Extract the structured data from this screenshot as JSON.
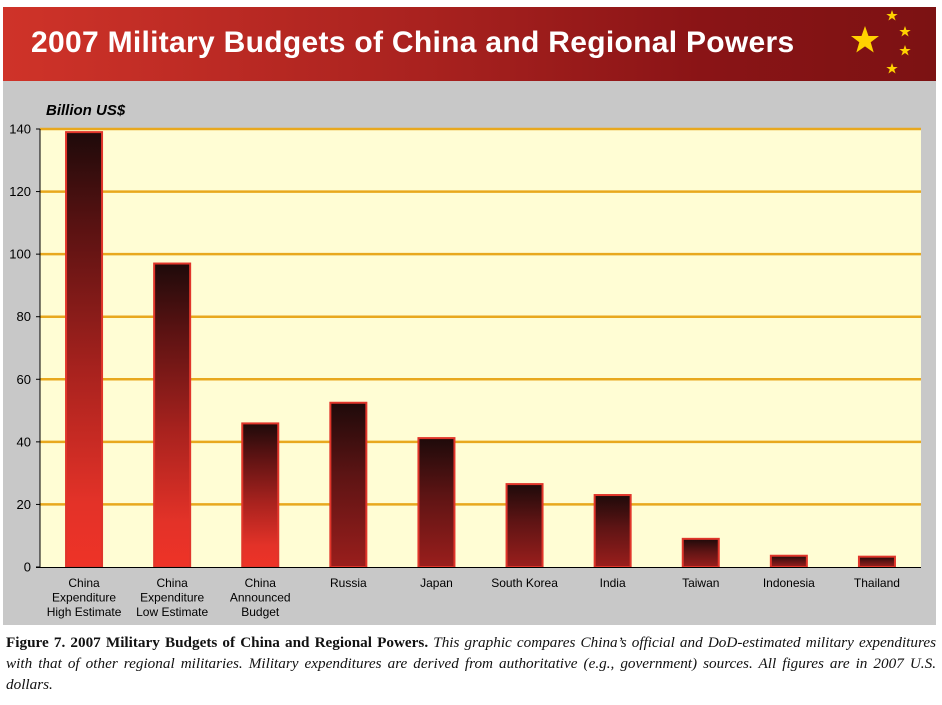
{
  "colors": {
    "banner_start": "#cf3329",
    "banner_end": "#7c1213",
    "plot_background": "#fffdd4",
    "gridline": "#e8a81e",
    "star": "#ffd200",
    "bar_dark": "#1e0a0a",
    "bar_mid": "#8e1c1a",
    "bar_light": "#ee3327",
    "bar_outline": "#e0352a"
  },
  "chart_data": {
    "type": "bar",
    "title": "2007 Military Budgets of China and Regional Powers",
    "ylabel": "Billion US$",
    "xlabel": "",
    "ylim": [
      0,
      140
    ],
    "yticks": [
      0,
      20,
      40,
      60,
      80,
      100,
      120,
      140
    ],
    "grid": true,
    "categories": [
      [
        "China",
        "Expenditure",
        "High Estimate"
      ],
      [
        "China",
        "Expenditure",
        "Low Estimate"
      ],
      [
        "China",
        "Announced",
        "Budget"
      ],
      [
        "Russia"
      ],
      [
        "Japan"
      ],
      [
        "South Korea"
      ],
      [
        "India"
      ],
      [
        "Taiwan"
      ],
      [
        "Indonesia"
      ],
      [
        "Thailand"
      ]
    ],
    "values": [
      139,
      97,
      45.9,
      52.5,
      41.2,
      26.5,
      23,
      9,
      3.6,
      3.3
    ],
    "china_flags": [
      true,
      true,
      true,
      false,
      false,
      false,
      false,
      false,
      false,
      false
    ]
  },
  "caption": {
    "label": "Figure 7.  2007 Military Budgets of China and Regional Powers.",
    "text": " This graphic compares China’s official and DoD-estimated military expenditures with that of other regional militaries.  Military expenditures are derived from authoritative (e.g., government) sources.  All figures are in 2007 U.S. dollars."
  }
}
